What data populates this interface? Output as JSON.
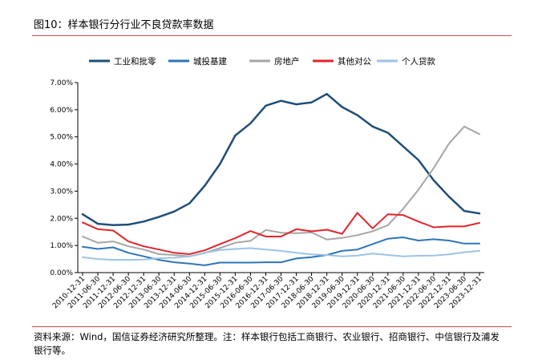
{
  "figure": {
    "title": "图10：样本银行分行业不良贷款率数据",
    "note": "资料来源：Wind，国信证券经济研究所整理。注：样本银行包括工商银行、农业银行、招商银行、中信银行及浦发银行等。"
  },
  "chart_data": {
    "type": "line",
    "title": "",
    "xlabel": "",
    "ylabel": "",
    "ylim": [
      0,
      7
    ],
    "y_ticks": [
      "0.00%",
      "1.00%",
      "2.00%",
      "3.00%",
      "4.00%",
      "5.00%",
      "6.00%",
      "7.00%"
    ],
    "grid": false,
    "legend_position": "top",
    "x": [
      "2010-12-31",
      "2011-06-30",
      "2011-12-31",
      "2012-06-30",
      "2012-12-31",
      "2013-06-30",
      "2013-12-31",
      "2014-06-30",
      "2014-12-31",
      "2015-06-30",
      "2015-12-31",
      "2016-06-30",
      "2016-12-31",
      "2017-06-30",
      "2017-12-31",
      "2018-06-30",
      "2018-12-31",
      "2019-06-30",
      "2019-12-31",
      "2020-06-30",
      "2020-12-31",
      "2021-06-30",
      "2021-12-31",
      "2022-06-30",
      "2022-12-31",
      "2023-06-30",
      "2023-12-31"
    ],
    "series": [
      {
        "name": "工业和批零",
        "color": "#1f4e79",
        "width": 2.5,
        "values": [
          2.15,
          1.8,
          1.75,
          1.77,
          1.88,
          2.05,
          2.25,
          2.55,
          3.2,
          4.0,
          5.05,
          5.5,
          6.15,
          6.33,
          6.2,
          6.27,
          6.58,
          6.1,
          5.8,
          5.38,
          5.15,
          4.65,
          4.15,
          3.4,
          2.8,
          2.27,
          2.18
        ]
      },
      {
        "name": "城投基建",
        "color": "#2e75b6",
        "width": 2,
        "values": [
          0.95,
          0.87,
          0.93,
          0.73,
          0.6,
          0.47,
          0.38,
          0.33,
          0.27,
          0.37,
          0.37,
          0.37,
          0.38,
          0.38,
          0.52,
          0.57,
          0.65,
          0.8,
          0.85,
          1.05,
          1.25,
          1.3,
          1.18,
          1.23,
          1.18,
          1.07,
          1.07
        ]
      },
      {
        "name": "房地产",
        "color": "#a6a6a6",
        "width": 2,
        "values": [
          1.33,
          1.1,
          1.15,
          0.97,
          0.85,
          0.68,
          0.65,
          0.6,
          0.72,
          0.9,
          1.1,
          1.17,
          1.57,
          1.47,
          1.45,
          1.48,
          1.22,
          1.28,
          1.38,
          1.52,
          1.75,
          2.35,
          3.05,
          3.85,
          4.75,
          5.38,
          5.1
        ]
      },
      {
        "name": "其他对公",
        "color": "#e0262b",
        "width": 2,
        "values": [
          1.85,
          1.6,
          1.55,
          1.15,
          0.97,
          0.85,
          0.73,
          0.68,
          0.82,
          1.05,
          1.27,
          1.53,
          1.33,
          1.33,
          1.6,
          1.52,
          1.58,
          1.43,
          2.2,
          1.63,
          2.15,
          2.12,
          1.88,
          1.67,
          1.7,
          1.7,
          1.83
        ]
      },
      {
        "name": "个人贷款",
        "color": "#9dc3e6",
        "width": 2,
        "values": [
          0.57,
          0.5,
          0.47,
          0.47,
          0.48,
          0.53,
          0.55,
          0.6,
          0.73,
          0.83,
          0.87,
          0.9,
          0.85,
          0.8,
          0.73,
          0.67,
          0.65,
          0.6,
          0.63,
          0.7,
          0.65,
          0.6,
          0.62,
          0.63,
          0.67,
          0.75,
          0.8
        ]
      }
    ]
  }
}
